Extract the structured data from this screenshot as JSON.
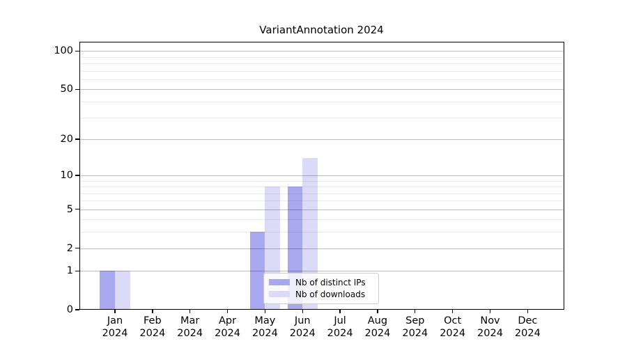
{
  "chart_data": {
    "type": "bar",
    "title": "VariantAnnotation 2024",
    "year": "2024",
    "categories": [
      "Jan",
      "Feb",
      "Mar",
      "Apr",
      "May",
      "Jun",
      "Jul",
      "Aug",
      "Sep",
      "Oct",
      "Nov",
      "Dec"
    ],
    "series": [
      {
        "name": "Nb of distinct IPs",
        "color": "#a8a8f0",
        "values": [
          1,
          0,
          0,
          0,
          3,
          8,
          0,
          0,
          0,
          0,
          0,
          0
        ]
      },
      {
        "name": "Nb of downloads",
        "color": "#dbdbf8",
        "values": [
          1,
          0,
          0,
          0,
          8,
          14,
          0,
          0,
          0,
          0,
          0,
          0
        ]
      }
    ],
    "yticks": [
      0,
      1,
      2,
      5,
      10,
      20,
      50,
      100
    ],
    "minor_gridlines": [
      3,
      4,
      6,
      7,
      8,
      9,
      30,
      40,
      60,
      70,
      80,
      90
    ],
    "scale": "log1p",
    "ylim": [
      0,
      119
    ],
    "grid": true,
    "legend_position": "lower center",
    "colors": {
      "bar_distinct_ips": "#a8a8f0",
      "bar_downloads": "#dbdbf8",
      "grid_major": "#c2c2c2",
      "grid_minor": "#ebebeb",
      "axis": "#000000",
      "legend_border": "#cccccc",
      "background": "#ffffff"
    }
  }
}
